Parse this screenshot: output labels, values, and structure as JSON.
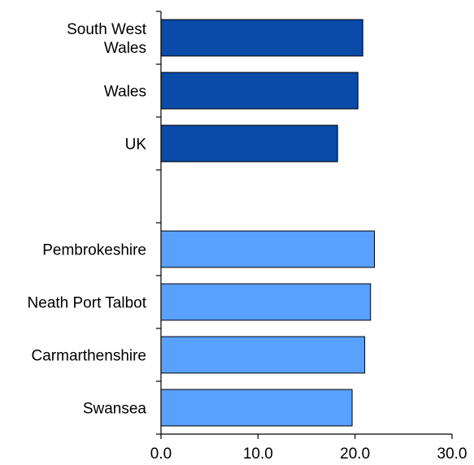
{
  "chart_data": {
    "type": "bar",
    "orientation": "horizontal",
    "categories": [
      "South West Wales",
      "Wales",
      "UK",
      "",
      "Pembrokeshire",
      "Neath Port Talbot",
      "Carmarthenshire",
      "Swansea"
    ],
    "values": [
      20.8,
      20.3,
      18.2,
      null,
      22.0,
      21.6,
      21.0,
      19.7
    ],
    "bar_colors": [
      "#0A4AA8",
      "#0A4AA8",
      "#0A4AA8",
      null,
      "#5AA0FF",
      "#5AA0FF",
      "#5AA0FF",
      "#5AA0FF"
    ],
    "xlim": [
      0,
      30
    ],
    "xticks": [
      0,
      10,
      20,
      30
    ],
    "xtick_labels": [
      "0.0",
      "10.0",
      "20.0",
      "30.0"
    ],
    "title": "",
    "xlabel": "",
    "ylabel": "",
    "grid": false,
    "legend": "none"
  }
}
